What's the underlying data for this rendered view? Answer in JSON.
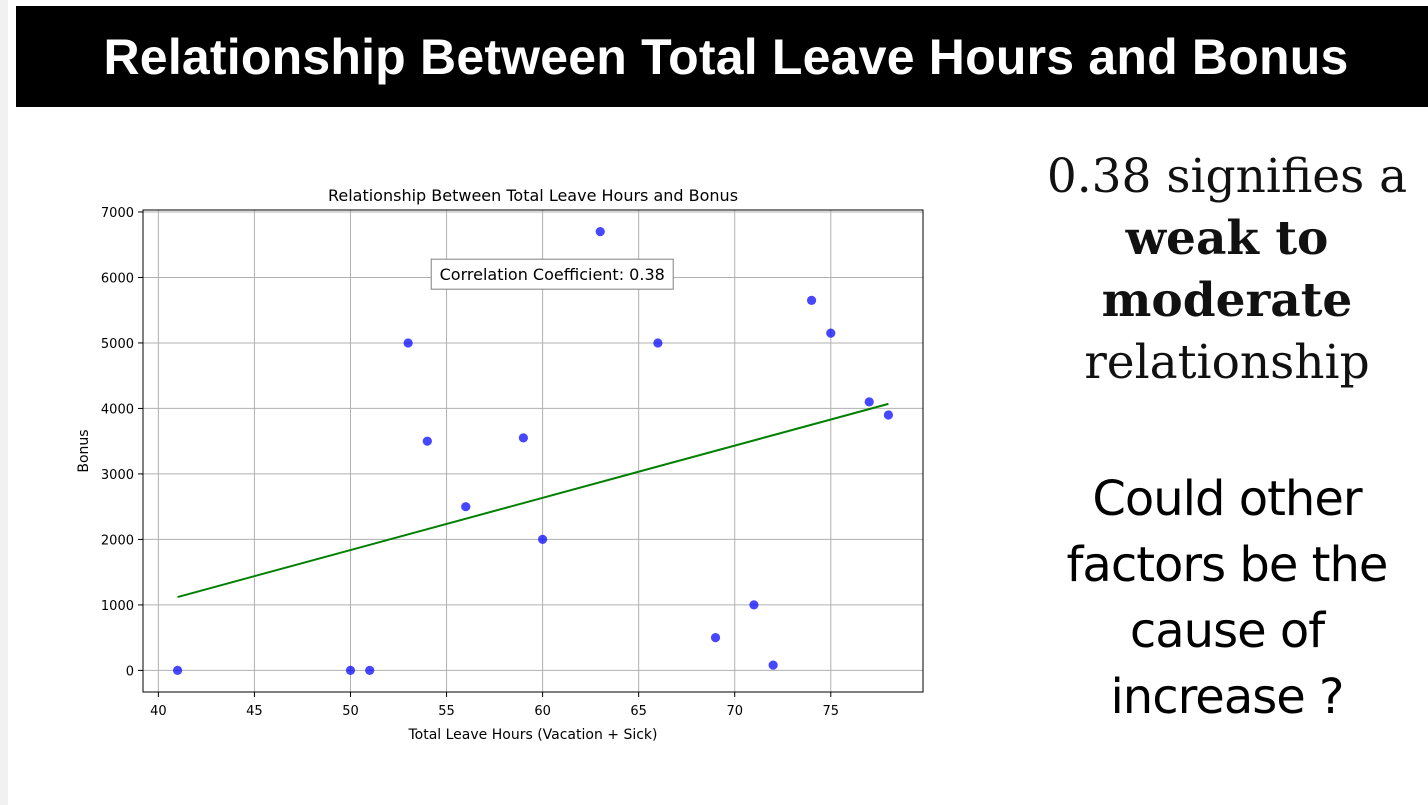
{
  "slide": {
    "title": "Relationship Between Total Leave Hours and Bonus"
  },
  "colors": {
    "title_bar": "#000000",
    "title_text": "#ffffff",
    "points": "#0000ff",
    "trend_line": "#008000",
    "grid": "#b0b0b0"
  },
  "side_text": {
    "line1": "0.38 signifies a",
    "line2_bold": "weak to",
    "line3_bold": "moderate",
    "line4": "relationship",
    "question_lines": [
      "Could other",
      "factors be the",
      "cause of",
      "increase ?"
    ]
  },
  "chart_data": {
    "type": "scatter",
    "title": "Relationship Between Total Leave Hours and Bonus",
    "xlabel": "Total Leave Hours (Vacation + Sick)",
    "ylabel": "Bonus",
    "xlim": [
      39.2,
      79.8
    ],
    "ylim": [
      -330,
      7030
    ],
    "xticks": [
      40,
      45,
      50,
      55,
      60,
      65,
      70,
      75
    ],
    "yticks": [
      0,
      1000,
      2000,
      3000,
      4000,
      5000,
      6000,
      7000
    ],
    "grid": true,
    "annotation": "Correlation Coefficient: 0.38",
    "points": [
      {
        "x": 41,
        "y": 0
      },
      {
        "x": 50,
        "y": 0
      },
      {
        "x": 51,
        "y": 0
      },
      {
        "x": 53,
        "y": 5000
      },
      {
        "x": 54,
        "y": 3500
      },
      {
        "x": 56,
        "y": 2500
      },
      {
        "x": 59,
        "y": 3550
      },
      {
        "x": 60,
        "y": 2000
      },
      {
        "x": 63,
        "y": 6700
      },
      {
        "x": 66,
        "y": 5000
      },
      {
        "x": 69,
        "y": 500
      },
      {
        "x": 71,
        "y": 1000
      },
      {
        "x": 72,
        "y": 80
      },
      {
        "x": 74,
        "y": 5650
      },
      {
        "x": 75,
        "y": 5150
      },
      {
        "x": 77,
        "y": 4100
      },
      {
        "x": 78,
        "y": 3900
      }
    ],
    "trend_line": {
      "x": [
        41,
        78
      ],
      "y": [
        1120,
        4070
      ]
    }
  }
}
